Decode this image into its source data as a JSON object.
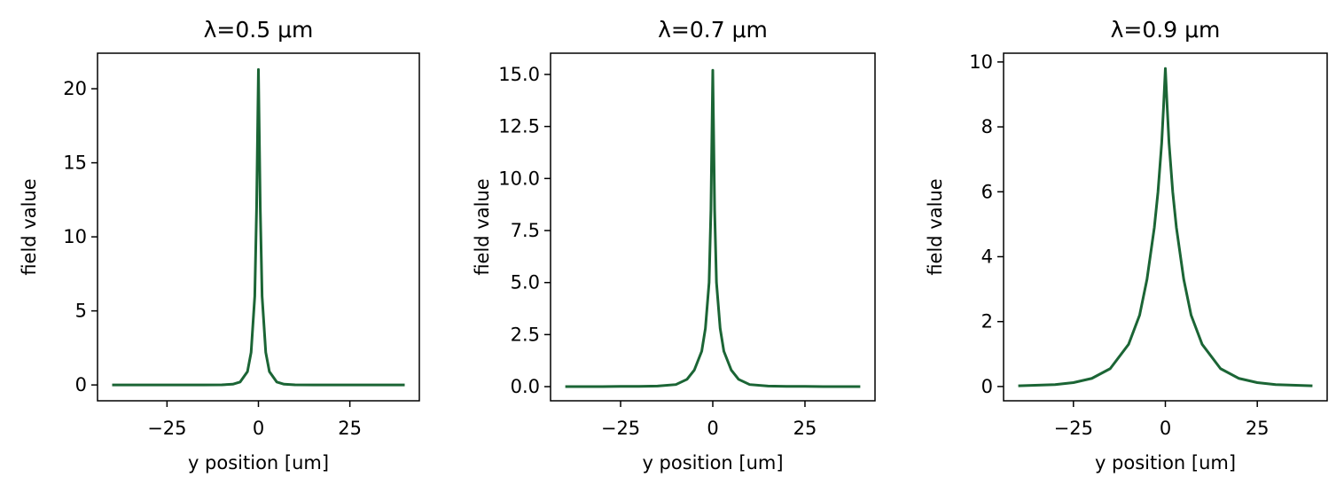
{
  "chart_data": [
    {
      "type": "line",
      "title": "λ=0.5 μm",
      "xlabel": "y position [um]",
      "ylabel": "field value",
      "x": [
        -40,
        -30,
        -25,
        -20,
        -15,
        -10,
        -7,
        -5,
        -3,
        -2,
        -1,
        -0.5,
        0,
        0.5,
        1,
        2,
        3,
        5,
        7,
        10,
        15,
        20,
        25,
        30,
        40
      ],
      "series": [
        {
          "color": "#1b6535",
          "values": [
            0,
            0,
            0,
            0,
            0,
            0.01,
            0.05,
            0.2,
            0.9,
            2.2,
            6,
            12,
            21.3,
            12,
            6,
            2.2,
            0.9,
            0.2,
            0.05,
            0.01,
            0,
            0,
            0,
            0,
            0
          ]
        }
      ],
      "xlim": [
        -44,
        44
      ],
      "ylim": [
        -1.07,
        22.4
      ],
      "xticks": [
        {
          "value": -25,
          "label": "−25"
        },
        0,
        25
      ],
      "yticks": [
        0,
        5,
        10,
        15,
        20
      ]
    },
    {
      "type": "line",
      "title": "λ=0.7 μm",
      "xlabel": "y position [um]",
      "ylabel": "field value",
      "x": [
        -40,
        -30,
        -25,
        -20,
        -15,
        -10,
        -7,
        -5,
        -3,
        -2,
        -1,
        -0.5,
        0,
        0.5,
        1,
        2,
        3,
        5,
        7,
        10,
        15,
        20,
        25,
        30,
        40
      ],
      "series": [
        {
          "color": "#1b6535",
          "values": [
            0,
            0,
            0.01,
            0.01,
            0.03,
            0.1,
            0.35,
            0.8,
            1.7,
            2.8,
            5,
            8.5,
            15.2,
            8.5,
            5,
            2.8,
            1.7,
            0.8,
            0.35,
            0.1,
            0.03,
            0.01,
            0.01,
            0,
            0
          ]
        }
      ],
      "xlim": [
        -44,
        44
      ],
      "ylim": [
        -0.68,
        16.02
      ],
      "xticks": [
        {
          "value": -25,
          "label": "−25"
        },
        0,
        25
      ],
      "yticks": [
        {
          "value": 0,
          "label": "0.0"
        },
        2.5,
        {
          "value": 5,
          "label": "5.0"
        },
        7.5,
        {
          "value": 10,
          "label": "10.0"
        },
        12.5,
        {
          "value": 15,
          "label": "15.0"
        }
      ]
    },
    {
      "type": "line",
      "title": "λ=0.9 μm",
      "xlabel": "y position [um]",
      "ylabel": "field value",
      "x": [
        -40,
        -30,
        -25,
        -20,
        -15,
        -10,
        -7,
        -5,
        -3,
        -2,
        -1,
        -0.5,
        0,
        0.5,
        1,
        2,
        3,
        5,
        7,
        10,
        15,
        20,
        25,
        30,
        40
      ],
      "series": [
        {
          "color": "#1b6535",
          "values": [
            0.02,
            0.06,
            0.12,
            0.25,
            0.55,
            1.3,
            2.2,
            3.3,
            4.9,
            6,
            7.5,
            8.6,
            9.8,
            8.6,
            7.5,
            6,
            4.9,
            3.3,
            2.2,
            1.3,
            0.55,
            0.25,
            0.12,
            0.06,
            0.02
          ]
        }
      ],
      "xlim": [
        -44,
        44
      ],
      "ylim": [
        -0.44,
        10.27
      ],
      "xticks": [
        {
          "value": -25,
          "label": "−25"
        },
        0,
        25
      ],
      "yticks": [
        0,
        2,
        4,
        6,
        8,
        10
      ]
    }
  ]
}
